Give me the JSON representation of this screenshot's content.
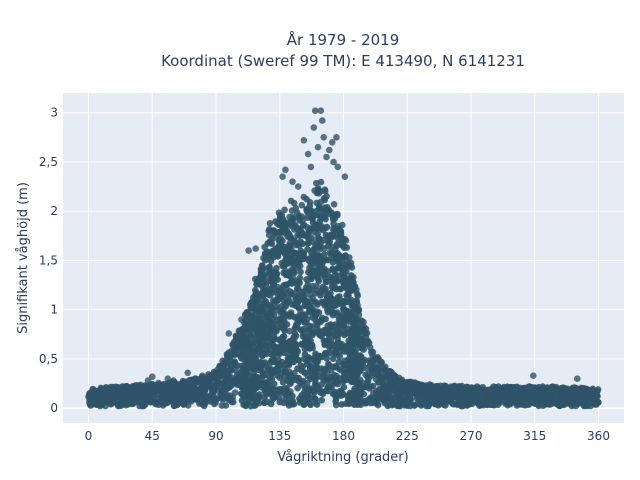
{
  "chart_data": {
    "type": "scatter",
    "title_line1": "År 1979 - 2019",
    "title_line2": "Koordinat (Sweref 99 TM): E 413490, N 6141231",
    "xlabel": "Vågriktning (grader)",
    "ylabel": "Signifikant våghöjd (m)",
    "xlim": [
      -18,
      378
    ],
    "ylim": [
      -0.15,
      3.2
    ],
    "x_ticks": [
      0,
      45,
      90,
      135,
      180,
      225,
      270,
      315,
      360
    ],
    "x_tick_labels": [
      "0",
      "45",
      "90",
      "135",
      "180",
      "225",
      "270",
      "315",
      "360"
    ],
    "y_ticks": [
      0,
      0.5,
      1,
      1.5,
      2,
      2.5,
      3
    ],
    "y_tick_labels": [
      "0",
      "0,5",
      "1",
      "1,5",
      "2",
      "2,5",
      "3"
    ],
    "grid": true,
    "legend": "none",
    "colors": {
      "marker": "#2f5468",
      "plot_bg": "#e5ecf6",
      "grid": "#ffffff",
      "text": "#2a3f5f"
    },
    "envelope": [
      {
        "x": 0,
        "y": 0.2
      },
      {
        "x": 20,
        "y": 0.22
      },
      {
        "x": 45,
        "y": 0.25
      },
      {
        "x": 70,
        "y": 0.28
      },
      {
        "x": 90,
        "y": 0.38
      },
      {
        "x": 100,
        "y": 0.6
      },
      {
        "x": 110,
        "y": 0.95
      },
      {
        "x": 120,
        "y": 1.45
      },
      {
        "x": 128,
        "y": 1.9
      },
      {
        "x": 135,
        "y": 2.05
      },
      {
        "x": 142,
        "y": 2.1
      },
      {
        "x": 150,
        "y": 2.15
      },
      {
        "x": 158,
        "y": 2.25
      },
      {
        "x": 165,
        "y": 2.35
      },
      {
        "x": 172,
        "y": 2.2
      },
      {
        "x": 178,
        "y": 1.95
      },
      {
        "x": 185,
        "y": 1.5
      },
      {
        "x": 192,
        "y": 1.0
      },
      {
        "x": 200,
        "y": 0.6
      },
      {
        "x": 210,
        "y": 0.42
      },
      {
        "x": 222,
        "y": 0.28
      },
      {
        "x": 240,
        "y": 0.24
      },
      {
        "x": 270,
        "y": 0.22
      },
      {
        "x": 300,
        "y": 0.22
      },
      {
        "x": 330,
        "y": 0.22
      },
      {
        "x": 360,
        "y": 0.2
      }
    ],
    "outliers": [
      {
        "x": 152,
        "y": 2.72
      },
      {
        "x": 155,
        "y": 2.58
      },
      {
        "x": 159,
        "y": 2.85
      },
      {
        "x": 160,
        "y": 3.02
      },
      {
        "x": 162,
        "y": 2.65
      },
      {
        "x": 164,
        "y": 3.02
      },
      {
        "x": 165,
        "y": 2.92
      },
      {
        "x": 166,
        "y": 2.75
      },
      {
        "x": 168,
        "y": 2.55
      },
      {
        "x": 170,
        "y": 2.62
      },
      {
        "x": 172,
        "y": 2.7
      },
      {
        "x": 173,
        "y": 2.5
      },
      {
        "x": 175,
        "y": 2.75
      },
      {
        "x": 176,
        "y": 2.45
      },
      {
        "x": 181,
        "y": 2.35
      },
      {
        "x": 157,
        "y": 2.45
      },
      {
        "x": 148,
        "y": 2.25
      },
      {
        "x": 137,
        "y": 2.35
      },
      {
        "x": 139,
        "y": 2.42
      },
      {
        "x": 144,
        "y": 2.3
      },
      {
        "x": 99,
        "y": 0.76
      },
      {
        "x": 96,
        "y": 0.46
      },
      {
        "x": 108,
        "y": 0.9
      },
      {
        "x": 113,
        "y": 1.6
      },
      {
        "x": 118,
        "y": 1.62
      },
      {
        "x": 45,
        "y": 0.32
      },
      {
        "x": 42,
        "y": 0.28
      },
      {
        "x": 60,
        "y": 0.28
      },
      {
        "x": 70,
        "y": 0.36
      },
      {
        "x": 56,
        "y": 0.3
      },
      {
        "x": 314,
        "y": 0.33
      },
      {
        "x": 345,
        "y": 0.3
      },
      {
        "x": 238,
        "y": 0.22
      },
      {
        "x": 205,
        "y": 0.45
      }
    ]
  }
}
